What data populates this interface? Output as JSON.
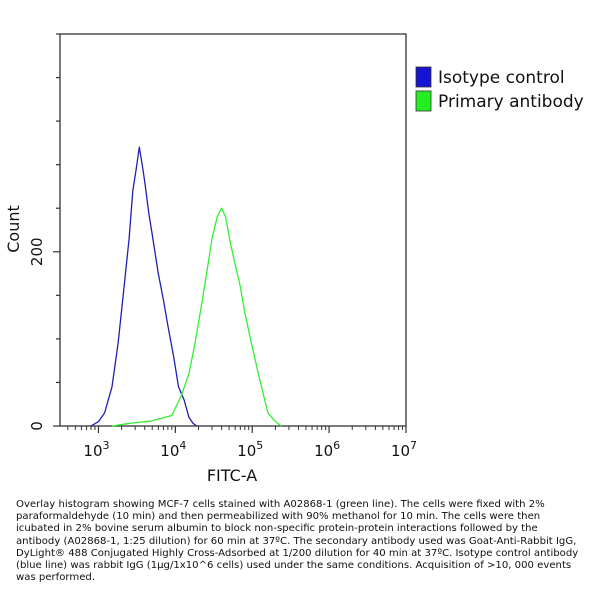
{
  "chart_data": {
    "type": "line",
    "title": "",
    "xlabel": "FITC-A",
    "ylabel": "Count",
    "x_scale": "log",
    "xlim": [
      316,
      10000000
    ],
    "ylim": [
      0,
      450
    ],
    "grid": false,
    "legend_position": "top-right",
    "x_ticks": [
      {
        "value": 1000,
        "base": "10",
        "exp": "3"
      },
      {
        "value": 10000,
        "base": "10",
        "exp": "4"
      },
      {
        "value": 100000,
        "base": "10",
        "exp": "5"
      },
      {
        "value": 1000000,
        "base": "10",
        "exp": "6"
      },
      {
        "value": 10000000,
        "base": "10",
        "exp": "7"
      }
    ],
    "y_ticks": [
      {
        "value": 0,
        "label": "0"
      },
      {
        "value": 200,
        "label": "200"
      }
    ],
    "series": [
      {
        "name": "Isotype control",
        "color": "#2020b0",
        "legend_color": "#1414d2",
        "x": [
          800,
          1000,
          1200,
          1500,
          1800,
          2100,
          2500,
          2800,
          3100,
          3400,
          3700,
          4000,
          4500,
          5000,
          6000,
          7000,
          8000,
          9500,
          11000,
          13000,
          15000,
          17000,
          19000
        ],
        "y": [
          0,
          5,
          15,
          45,
          95,
          150,
          215,
          270,
          295,
          320,
          300,
          280,
          245,
          220,
          175,
          145,
          115,
          80,
          45,
          30,
          10,
          3,
          0
        ]
      },
      {
        "name": "Primary antibody",
        "color": "#33ee33",
        "legend_color": "#22ee22",
        "x": [
          1500,
          2500,
          5000,
          9000,
          12000,
          15000,
          18000,
          22000,
          26000,
          30000,
          35000,
          40000,
          45000,
          52000,
          60000,
          70000,
          80000,
          95000,
          120000,
          160000,
          200000,
          240000
        ],
        "y": [
          0,
          3,
          6,
          12,
          35,
          60,
          95,
          140,
          180,
          215,
          240,
          250,
          240,
          210,
          185,
          160,
          130,
          100,
          60,
          15,
          5,
          0
        ]
      }
    ]
  },
  "caption": "Overlay histogram showing MCF-7 cells stained with A02868-1 (green line). The cells were fixed with 2% paraformaldehyde (10 min) and then permeabilized with 90% methanol for 10 min. The cells were then icubated in 2% bovine serum albumin to block non-specific protein-protein interactions followed by the antibody (A02868-1, 1:25 dilution) for 60 min at 37ºC. The secondary antibody used was Goat-Anti-Rabbit IgG, DyLight® 488 Conjugated Highly Cross-Adsorbed at 1/200 dilution for 40 min at 37ºC. Isotype control antibody (blue line) was rabbit IgG (1μg/1x10^6 cells) used under the same conditions. Acquisition of >10, 000 events was performed."
}
